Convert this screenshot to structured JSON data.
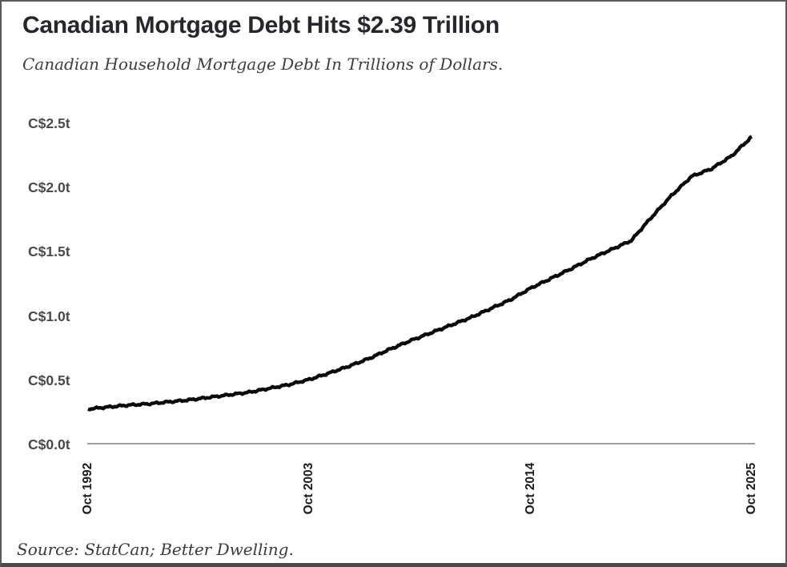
{
  "header": {
    "title": "Canadian Mortgage Debt Hits $2.39 Trillion",
    "subtitle": "Canadian Household Mortgage Debt In Trillions of Dollars."
  },
  "footer": {
    "source": "Source: StatCan; Better Dwelling."
  },
  "colors": {
    "line": "#0a0a0a",
    "zero_axis": "#7d7d7d",
    "title_text": "#27272b",
    "subtitle_text": "#3d3d3d",
    "y_tick_text": "#4a4a4a",
    "x_tick_text": "#1c1c1c",
    "border": "#5a5a5a",
    "background": "#ffffff"
  },
  "chart_data": {
    "type": "line",
    "title": "Canadian Mortgage Debt Hits $2.39 Trillion",
    "subtitle": "Canadian Household Mortgage Debt In Trillions of Dollars.",
    "xlabel": "",
    "ylabel": "C$ trillions",
    "grid": false,
    "legend": "none",
    "ylim": [
      0,
      2.65
    ],
    "x_range": [
      "Oct 1992",
      "Oct 2025"
    ],
    "latest_value_trillions": 2.39,
    "y_ticks": [
      {
        "label": "C$2.5t",
        "value": 2.5
      },
      {
        "label": "C$2.0t",
        "value": 2.0
      },
      {
        "label": "C$1.5t",
        "value": 1.5
      },
      {
        "label": "C$1.0t",
        "value": 1.0
      },
      {
        "label": "C$0.5t",
        "value": 0.5
      },
      {
        "label": "C$0.0t",
        "value": 0.0
      }
    ],
    "x_ticks": [
      {
        "label": "Oct 1992",
        "year": 1992
      },
      {
        "label": "Oct 2003",
        "year": 2003
      },
      {
        "label": "Oct 2014",
        "year": 2014
      },
      {
        "label": "Oct 2025",
        "year": 2025
      }
    ],
    "series": [
      {
        "name": "Canadian household mortgage debt (C$ trillions, October of each year)",
        "years": [
          1992,
          1993,
          1994,
          1995,
          1996,
          1997,
          1998,
          1999,
          2000,
          2001,
          2002,
          2003,
          2004,
          2005,
          2006,
          2007,
          2008,
          2009,
          2010,
          2011,
          2012,
          2013,
          2014,
          2015,
          2016,
          2017,
          2018,
          2019,
          2020,
          2021,
          2022,
          2023,
          2024,
          2025
        ],
        "values": [
          0.27,
          0.285,
          0.3,
          0.31,
          0.325,
          0.34,
          0.36,
          0.38,
          0.4,
          0.43,
          0.46,
          0.5,
          0.55,
          0.605,
          0.665,
          0.735,
          0.8,
          0.86,
          0.92,
          0.98,
          1.05,
          1.12,
          1.21,
          1.285,
          1.36,
          1.44,
          1.51,
          1.58,
          1.76,
          1.93,
          2.08,
          2.14,
          2.24,
          2.39
        ]
      }
    ]
  }
}
